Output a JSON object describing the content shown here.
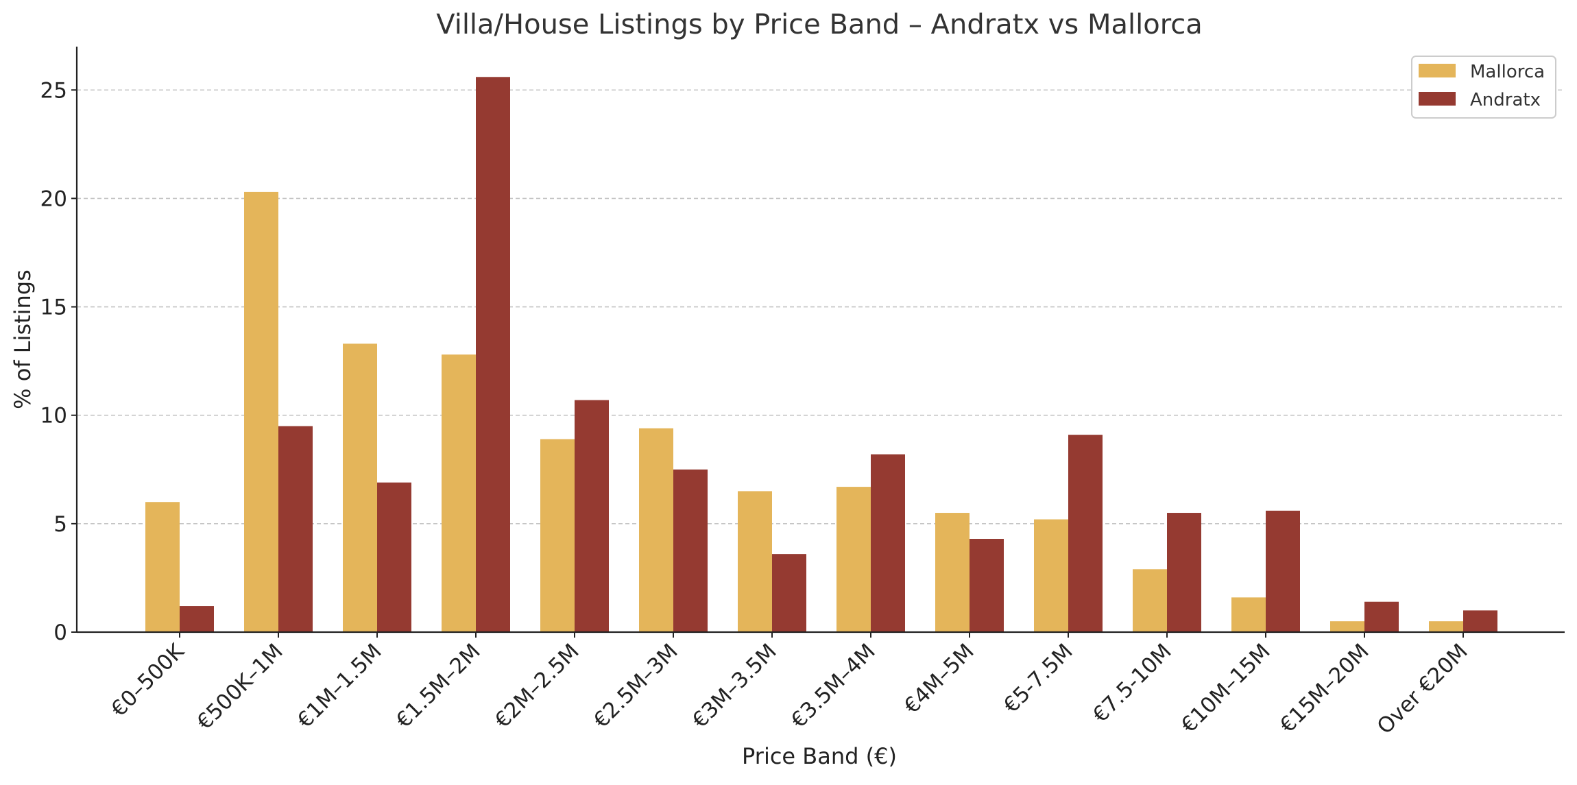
{
  "chart_data": {
    "type": "bar",
    "title": "Villa/House Listings by Price Band – Andratx vs Mallorca",
    "xlabel": "Price Band (€)",
    "ylabel": "% of Listings",
    "ylim": [
      0,
      27
    ],
    "yticks": [
      0,
      5,
      10,
      15,
      20,
      25
    ],
    "grid": "horizontal, dashed",
    "legend_position": "top-right",
    "categories": [
      "€0–500K",
      "€500K–1M",
      "€1M–1.5M",
      "€1.5M–2M",
      "€2M–2.5M",
      "€2.5M–3M",
      "€3M–3.5M",
      "€3.5M–4M",
      "€4M–5M",
      "€5-7.5M",
      "€7.5-10M",
      "€10M–15M",
      "€15M–20M",
      "Over €20M"
    ],
    "series": [
      {
        "name": "Mallorca",
        "color": "#E4B55A",
        "values": [
          6.0,
          20.3,
          13.3,
          12.8,
          8.9,
          9.4,
          6.5,
          6.7,
          5.5,
          5.2,
          2.9,
          1.6,
          0.5,
          0.5
        ]
      },
      {
        "name": "Andratx",
        "color": "#953A31",
        "values": [
          1.2,
          9.5,
          6.9,
          25.6,
          10.7,
          7.5,
          3.6,
          8.2,
          4.3,
          9.1,
          5.5,
          5.6,
          1.4,
          1.0
        ]
      }
    ]
  }
}
